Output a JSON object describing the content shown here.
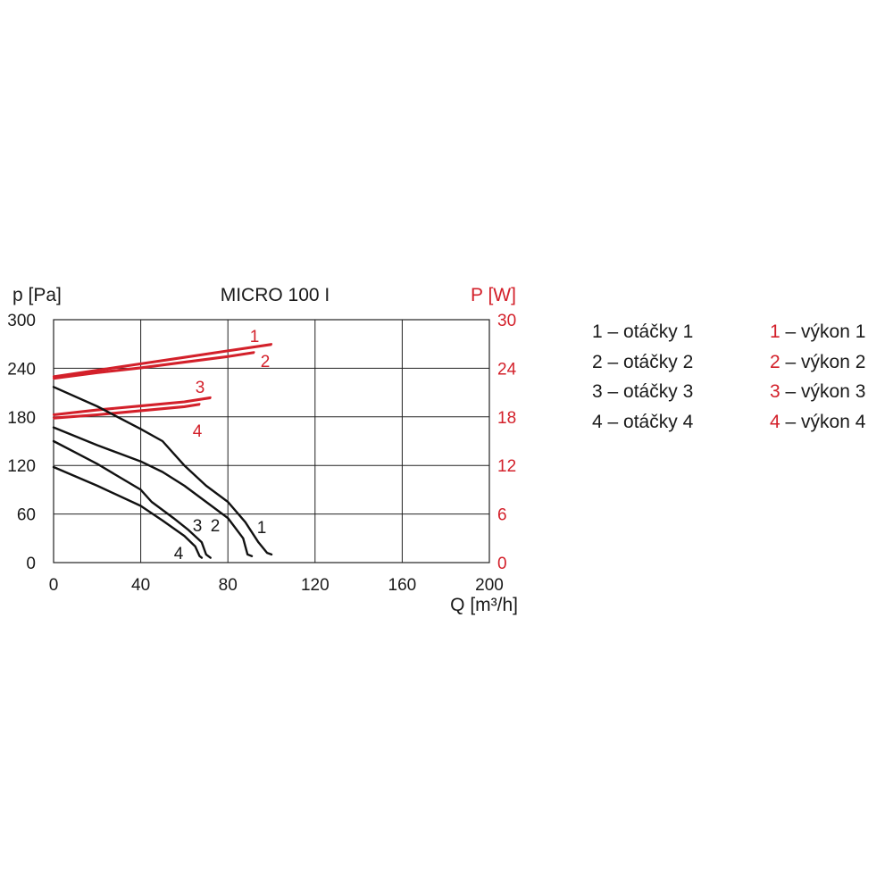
{
  "colors": {
    "pressure": "#111111",
    "power": "#d3202a",
    "grid": "#222222"
  },
  "chart_data": {
    "type": "line",
    "title": "MICRO 100 I",
    "xlabel": "Q [m³/h]",
    "ylabel_left": "p [Pa]",
    "ylabel_right": "P [W]",
    "xlim": [
      0,
      200
    ],
    "ylim_left": [
      0,
      300
    ],
    "ylim_right": [
      0,
      30
    ],
    "x_ticks": [
      "0",
      "40",
      "80",
      "120",
      "160",
      "200"
    ],
    "y_ticks_left": [
      "0",
      "60",
      "120",
      "180",
      "240",
      "300"
    ],
    "y_ticks_right": [
      "0",
      "6",
      "12",
      "18",
      "24",
      "30"
    ],
    "grid": true,
    "pressure_series": [
      {
        "name": "1",
        "points": [
          [
            0,
            217
          ],
          [
            20,
            193
          ],
          [
            40,
            165
          ],
          [
            50,
            150
          ],
          [
            60,
            120
          ],
          [
            70,
            95
          ],
          [
            80,
            75
          ],
          [
            88,
            50
          ],
          [
            94,
            25
          ],
          [
            98,
            12
          ],
          [
            100,
            10
          ]
        ]
      },
      {
        "name": "2",
        "points": [
          [
            0,
            167
          ],
          [
            20,
            145
          ],
          [
            40,
            125
          ],
          [
            50,
            112
          ],
          [
            60,
            95
          ],
          [
            70,
            75
          ],
          [
            80,
            55
          ],
          [
            87,
            30
          ],
          [
            89,
            10
          ],
          [
            91,
            8
          ]
        ]
      },
      {
        "name": "3",
        "points": [
          [
            0,
            150
          ],
          [
            20,
            122
          ],
          [
            40,
            90
          ],
          [
            45,
            75
          ],
          [
            55,
            55
          ],
          [
            62,
            40
          ],
          [
            68,
            25
          ],
          [
            70,
            10
          ],
          [
            72,
            6
          ]
        ]
      },
      {
        "name": "4",
        "points": [
          [
            0,
            118
          ],
          [
            20,
            95
          ],
          [
            40,
            70
          ],
          [
            50,
            52
          ],
          [
            60,
            33
          ],
          [
            65,
            20
          ],
          [
            67,
            8
          ],
          [
            68,
            6
          ]
        ]
      }
    ],
    "power_series": [
      {
        "name": "1",
        "points": [
          [
            0,
            23.0
          ],
          [
            20,
            23.8
          ],
          [
            40,
            24.6
          ],
          [
            60,
            25.4
          ],
          [
            80,
            26.2
          ],
          [
            100,
            27.0
          ]
        ]
      },
      {
        "name": "2",
        "points": [
          [
            0,
            22.8
          ],
          [
            20,
            23.5
          ],
          [
            40,
            24.1
          ],
          [
            60,
            24.8
          ],
          [
            80,
            25.5
          ],
          [
            92,
            26.0
          ]
        ]
      },
      {
        "name": "3",
        "points": [
          [
            0,
            18.3
          ],
          [
            20,
            18.9
          ],
          [
            40,
            19.4
          ],
          [
            60,
            19.9
          ],
          [
            72,
            20.4
          ]
        ]
      },
      {
        "name": "4",
        "points": [
          [
            0,
            17.9
          ],
          [
            20,
            18.3
          ],
          [
            40,
            18.8
          ],
          [
            60,
            19.3
          ],
          [
            67,
            19.6
          ]
        ]
      }
    ],
    "pressure_labels": [
      "1",
      "2",
      "3",
      "4"
    ],
    "power_labels": [
      "1",
      "2",
      "3",
      "4"
    ]
  },
  "legend": {
    "left": [
      {
        "num": "1",
        "text": " – otáčky 1"
      },
      {
        "num": "2",
        "text": " – otáčky 2"
      },
      {
        "num": "3",
        "text": " – otáčky 3"
      },
      {
        "num": "4",
        "text": " – otáčky 4"
      }
    ],
    "right": [
      {
        "num": "1",
        "text": " – výkon 1"
      },
      {
        "num": "2",
        "text": " – výkon 2"
      },
      {
        "num": "3",
        "text": " – výkon 3"
      },
      {
        "num": "4",
        "text": " – výkon 4"
      }
    ]
  }
}
